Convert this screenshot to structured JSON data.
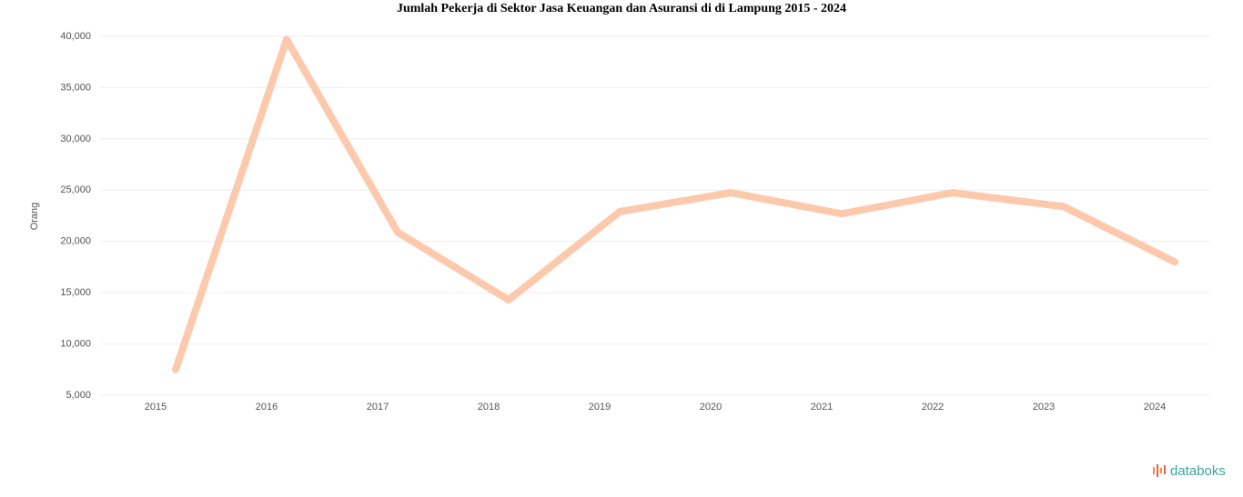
{
  "chart_data": {
    "type": "line",
    "title": "Jumlah Pekerja di Sektor Jasa Keuangan dan Asuransi di di Lampung 2015 - 2024",
    "y_label": "Orang",
    "categories": [
      "2015",
      "2016",
      "2017",
      "2018",
      "2019",
      "2020",
      "2021",
      "2022",
      "2023",
      "2024"
    ],
    "series": [
      {
        "name": "Jumlah Pekerja",
        "color": "#fdc9ac",
        "values": [
          7500,
          39700,
          20900,
          14300,
          22900,
          24750,
          22700,
          24750,
          23400,
          18000
        ]
      }
    ],
    "ylim": [
      5000,
      40000
    ],
    "yticks": [
      {
        "value": 5000,
        "label": "5,000"
      },
      {
        "value": 10000,
        "label": "10,000"
      },
      {
        "value": 15000,
        "label": "15,000"
      },
      {
        "value": 20000,
        "label": "20,000"
      },
      {
        "value": 25000,
        "label": "25,000"
      },
      {
        "value": 30000,
        "label": "30,000"
      },
      {
        "value": 35000,
        "label": "35,000"
      },
      {
        "value": 40000,
        "label": "40,000"
      }
    ],
    "grid": true,
    "source": "databoks"
  }
}
